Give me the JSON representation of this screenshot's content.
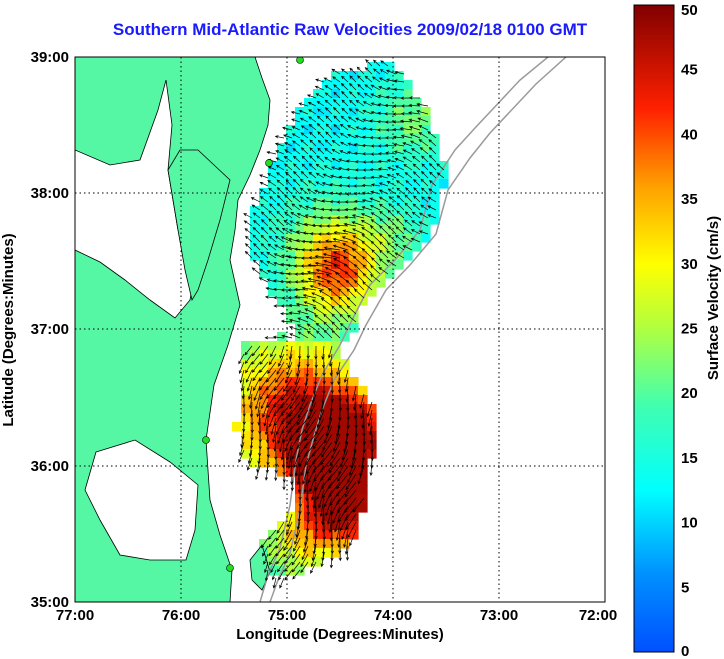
{
  "title": "Southern Mid-Atlantic Raw Velocities 2009/02/18 0100 GMT",
  "map": {
    "x_label": "Longitude (Degrees:Minutes)",
    "y_label": "Latitude (Degrees:Minutes)",
    "x_ticks": [
      "77:00",
      "76:00",
      "75:00",
      "74:00",
      "73:00",
      "72:00"
    ],
    "y_ticks": [
      "39:00",
      "38:00",
      "37:00",
      "36:00",
      "35:00"
    ],
    "lon_range": [
      -77,
      -72
    ],
    "lat_range": [
      35,
      39
    ],
    "land_color": "#55f7a5",
    "isobath_color": "#9a9a9a",
    "station_color": "#22dd22"
  },
  "colorbar": {
    "label": "Surface Velocity (cm/s)",
    "min": 0,
    "max": 50,
    "ticks": [
      "0",
      "5",
      "10",
      "15",
      "20",
      "25",
      "30",
      "35",
      "40",
      "45",
      "50"
    ]
  }
}
